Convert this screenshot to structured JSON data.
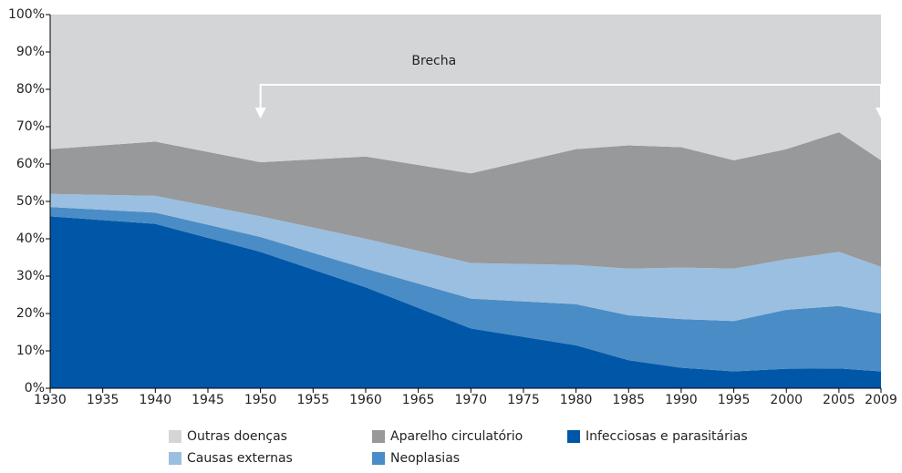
{
  "chart_data": {
    "type": "stacked_area",
    "x": [
      1930,
      1940,
      1950,
      1960,
      1970,
      1980,
      1985,
      1990,
      1995,
      2000,
      2005,
      2009
    ],
    "series": [
      {
        "name": "Infecciosas e parasitárias",
        "color": "#0057a8",
        "values": [
          46,
          44,
          36.5,
          27,
          16,
          11.5,
          7.5,
          5.5,
          4.5,
          5.2,
          5.3,
          4.5
        ]
      },
      {
        "name": "Neoplasias",
        "color": "#4a8cc6",
        "values": [
          2.5,
          3,
          4,
          5,
          8,
          11,
          12,
          13,
          13.5,
          15.8,
          16.7,
          15.5
        ]
      },
      {
        "name": "Causas externas",
        "color": "#9bbfe0",
        "values": [
          3.5,
          4.5,
          5.5,
          8,
          9.5,
          10.5,
          12.5,
          13.8,
          14,
          13.5,
          14.5,
          12.5
        ]
      },
      {
        "name": "Aparelho circulatório",
        "color": "#98999b",
        "values": [
          12,
          14.5,
          14.5,
          22,
          24,
          31,
          33,
          32.2,
          29,
          29.5,
          32,
          28.5
        ]
      },
      {
        "name": "Outras doenças",
        "color": "#d4d5d7",
        "values": [
          36,
          34,
          39.5,
          38,
          42.5,
          36,
          35,
          35.5,
          39,
          36,
          31.5,
          39
        ]
      }
    ],
    "xlim": [
      1930,
      2009
    ],
    "xticks": [
      1930,
      1935,
      1940,
      1945,
      1950,
      1955,
      1960,
      1965,
      1970,
      1975,
      1980,
      1985,
      1990,
      1995,
      2000,
      2005,
      2009
    ],
    "ylim": [
      0,
      100
    ],
    "yticks": [
      {
        "value": 0,
        "label": "0%"
      },
      {
        "value": 10,
        "label": "10%"
      },
      {
        "value": 20,
        "label": "20%"
      },
      {
        "value": 30,
        "label": "30%"
      },
      {
        "value": 40,
        "label": "40%"
      },
      {
        "value": 50,
        "label": "50%"
      },
      {
        "value": 60,
        "label": "60%"
      },
      {
        "value": 70,
        "label": "70%"
      },
      {
        "value": 80,
        "label": "80%"
      },
      {
        "value": 90,
        "label": "90%"
      },
      {
        "value": 100,
        "label": "100%"
      }
    ],
    "annotation": {
      "text": "Brecha",
      "x_start": 1950,
      "x_end": 2009
    }
  }
}
